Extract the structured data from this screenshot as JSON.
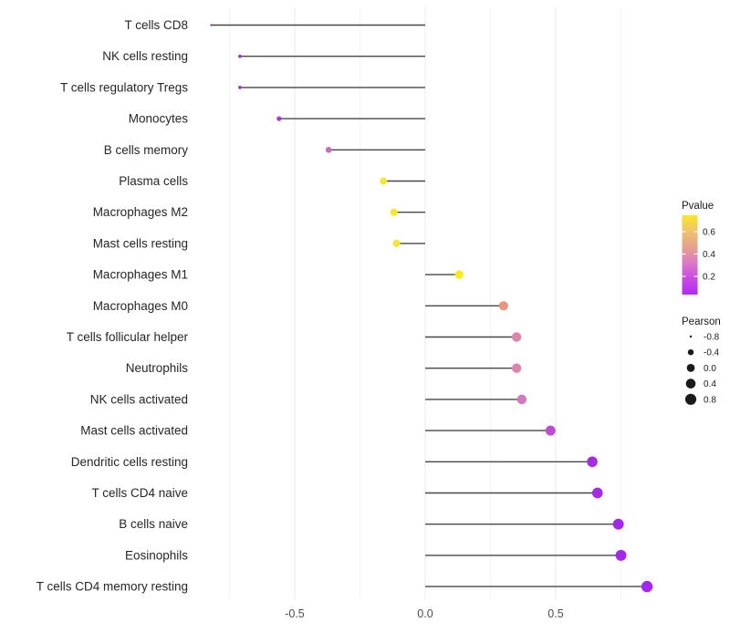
{
  "figure": {
    "background": "#FFFFFF"
  },
  "chart_data": {
    "type": "lollipop",
    "orientation": "horizontal",
    "title": "",
    "xlabel": "",
    "ylabel": "",
    "x_tick_labels": [
      "-0.5",
      "0.0",
      "0.5"
    ],
    "x_tick_values": [
      -0.5,
      0.0,
      0.5
    ],
    "x_minor_grid_values": [
      -0.75,
      -0.25,
      0.25,
      0.75
    ],
    "xlim": [
      -0.9,
      0.93
    ],
    "grid": "major and minor vertical gridlines, light gray on white",
    "legend_position": "right",
    "categories": [
      "T cells CD8",
      "NK cells resting",
      "T cells regulatory  Tregs",
      "Monocytes",
      "B cells memory",
      "Plasma cells",
      "Macrophages M2",
      "Mast cells resting",
      "Macrophages M1",
      "Macrophages M0",
      "T cells follicular helper",
      "Neutrophils",
      "NK cells activated",
      "Mast cells activated",
      "Dendritic cells resting",
      "T cells CD4 naive",
      "B cells naive",
      "Eosinophils",
      "T cells CD4 memory resting"
    ],
    "series": [
      {
        "name": "Pearson",
        "values": [
          -0.82,
          -0.71,
          -0.71,
          -0.56,
          -0.37,
          -0.16,
          -0.12,
          -0.11,
          0.13,
          0.3,
          0.35,
          0.35,
          0.37,
          0.48,
          0.64,
          0.66,
          0.74,
          0.75,
          0.85
        ]
      }
    ],
    "pvalue_est_from_color": [
      0.001,
      0.02,
      0.02,
      0.05,
      0.15,
      0.65,
      0.68,
      0.65,
      0.7,
      0.45,
      0.28,
      0.28,
      0.25,
      0.1,
      0.03,
      0.03,
      0.02,
      0.02,
      0.01
    ],
    "point_colors": [
      "#8B2BE0",
      "#9D33D6",
      "#9D33D6",
      "#A63BD0",
      "#C76BC3",
      "#F6E636",
      "#F8E82C",
      "#F6E636",
      "#F9E920",
      "#E9947F",
      "#DC85AE",
      "#DB83AC",
      "#D678BE",
      "#BC4CD4",
      "#A82BE4",
      "#A82BE4",
      "#A428EC",
      "#A428EC",
      "#A226F0"
    ],
    "stem_color": "#474747",
    "axis_text_color": "#4D4D4D",
    "label_text_color": "#262626",
    "legend": {
      "pvalue": {
        "title": "Pvalue",
        "tick_labels": [
          "0.6",
          "0.4",
          "0.2"
        ],
        "gradient_stops": [
          "#FBE723",
          "#EFC170",
          "#E6A28C",
          "#DB79C8",
          "#C94AE4",
          "#AF2CF0"
        ],
        "gradient_direction": "yellow top (high p) to purple bottom (low p)"
      },
      "pearson": {
        "title": "Pearson",
        "labels": [
          "-0.8",
          "-0.4",
          "0.0",
          "0.4",
          "0.8"
        ],
        "values": [
          -0.8,
          -0.4,
          0.0,
          0.4,
          0.8
        ],
        "dot_color": "#1A1A1A"
      }
    }
  }
}
